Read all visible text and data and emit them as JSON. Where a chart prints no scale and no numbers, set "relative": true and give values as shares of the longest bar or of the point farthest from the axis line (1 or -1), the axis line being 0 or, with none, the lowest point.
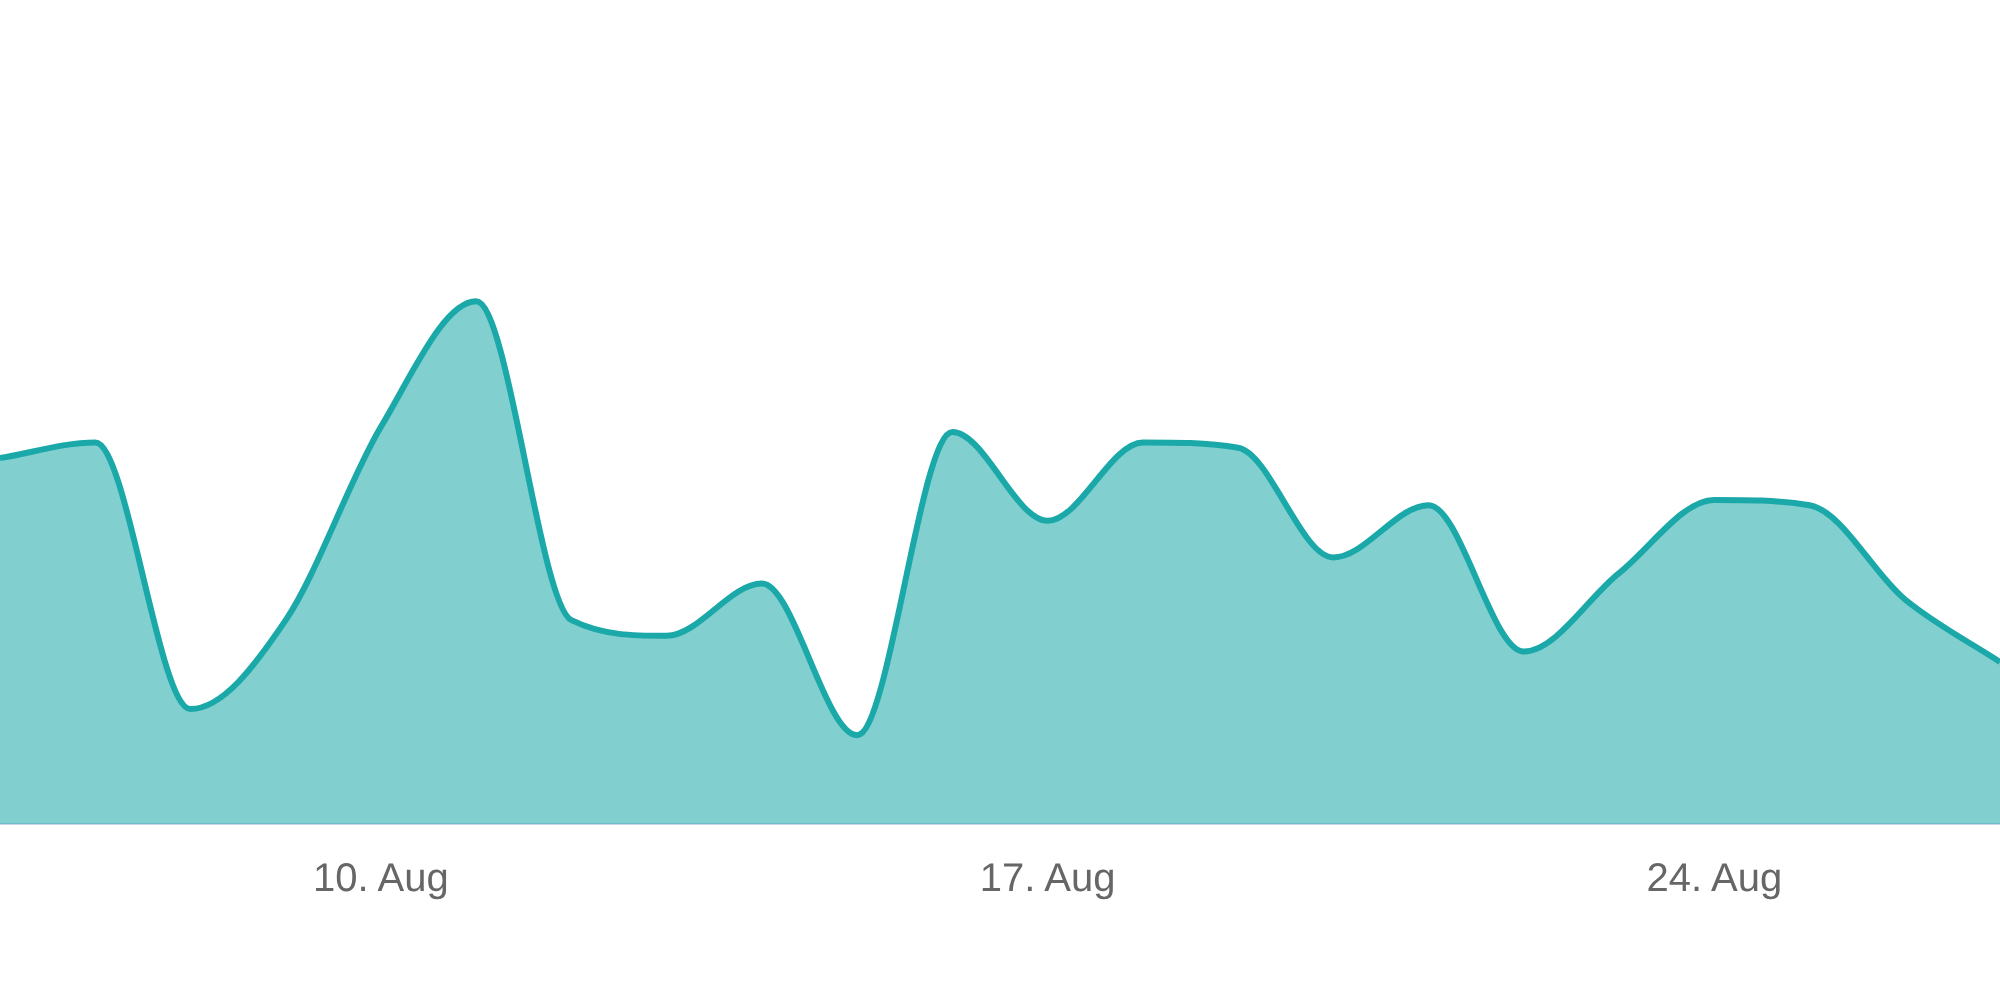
{
  "chart_data": {
    "type": "area",
    "relative": true,
    "legend": false,
    "marker": "none",
    "line_style": "solid",
    "x": [
      "--08-06",
      "--08-07",
      "--08-08",
      "--08-09",
      "--08-10",
      "--08-11",
      "--08-12",
      "--08-13",
      "--08-14",
      "--08-15",
      "--08-16",
      "--08-17",
      "--08-18",
      "--08-19",
      "--08-20",
      "--08-21",
      "--08-22",
      "--08-23",
      "--08-24",
      "--08-25",
      "--08-26",
      "--08-27"
    ],
    "xlim": [
      "--08-06",
      "--08-27"
    ],
    "xticks": [
      {
        "value": "--08-10",
        "label": "10. Aug"
      },
      {
        "value": "--08-17",
        "label": "17. Aug"
      },
      {
        "value": "--08-24",
        "label": "24. Aug"
      }
    ],
    "series": [
      {
        "color": "#1aa8a8",
        "values": [
          0.7,
          0.73,
          0.22,
          0.39,
          0.76,
          1,
          0.39,
          0.36,
          0.46,
          0.17,
          0.75,
          0.58,
          0.73,
          0.72,
          0.51,
          0.61,
          0.33,
          0.48,
          0.62,
          0.61,
          0.43,
          0.31
        ]
      }
    ]
  }
}
